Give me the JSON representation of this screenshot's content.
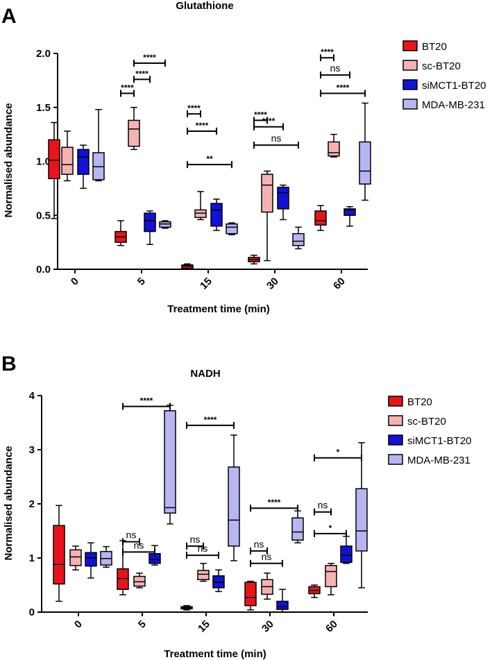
{
  "colors": {
    "BT20": "#e8141b",
    "sc-BT20": "#f5b2b2",
    "siMCT1-BT20": "#1212d6",
    "MDA-MB-231": "#b6b6f2"
  },
  "legend": [
    "BT20",
    "sc-BT20",
    "siMCT1-BT20",
    "MDA-MB-231"
  ],
  "chart_data": [
    {
      "panel": "A",
      "type": "box",
      "title": "Glutathione",
      "xlabel": "Treatment time (min)",
      "ylabel": "Normalised abundance",
      "ylim": [
        0,
        2.0
      ],
      "yticks": [
        "0.0",
        "0.5",
        "1.0",
        "1.5",
        "2.0"
      ],
      "categories": [
        "0",
        "5",
        "15",
        "30",
        "60"
      ],
      "series": [
        {
          "name": "BT20",
          "boxes": [
            {
              "min": 0.47,
              "q1": 0.84,
              "median": 1.01,
              "q3": 1.2,
              "max": 1.36
            },
            {
              "min": 0.22,
              "q1": 0.25,
              "median": 0.3,
              "q3": 0.35,
              "max": 0.45
            },
            {
              "min": 0.0,
              "q1": 0.01,
              "median": 0.03,
              "q3": 0.04,
              "max": 0.05
            },
            {
              "min": 0.05,
              "q1": 0.07,
              "median": 0.09,
              "q3": 0.11,
              "max": 0.13
            },
            {
              "min": 0.36,
              "q1": 0.41,
              "median": 0.45,
              "q3": 0.54,
              "max": 0.59
            }
          ]
        },
        {
          "name": "sc-BT20",
          "boxes": [
            {
              "min": 0.82,
              "q1": 0.88,
              "median": 0.97,
              "q3": 1.13,
              "max": 1.28
            },
            {
              "min": 1.11,
              "q1": 1.14,
              "median": 1.3,
              "q3": 1.38,
              "max": 1.5
            },
            {
              "min": 0.46,
              "q1": 0.48,
              "median": 0.52,
              "q3": 0.55,
              "max": 0.72
            },
            {
              "min": 0.08,
              "q1": 0.53,
              "median": 0.78,
              "q3": 0.88,
              "max": 0.91
            },
            {
              "min": 1.04,
              "q1": 1.05,
              "median": 1.08,
              "q3": 1.18,
              "max": 1.25
            }
          ]
        },
        {
          "name": "siMCT1-BT20",
          "boxes": [
            {
              "min": 0.75,
              "q1": 0.88,
              "median": 1.04,
              "q3": 1.11,
              "max": 1.15
            },
            {
              "min": 0.23,
              "q1": 0.35,
              "median": 0.45,
              "q3": 0.52,
              "max": 0.54
            },
            {
              "min": 0.36,
              "q1": 0.4,
              "median": 0.55,
              "q3": 0.61,
              "max": 0.65
            },
            {
              "min": 0.46,
              "q1": 0.56,
              "median": 0.71,
              "q3": 0.76,
              "max": 0.78
            },
            {
              "min": 0.4,
              "q1": 0.5,
              "median": 0.55,
              "q3": 0.56,
              "max": 0.58
            }
          ]
        },
        {
          "name": "MDA-MB-231",
          "boxes": [
            {
              "min": 0.82,
              "q1": 0.83,
              "median": 0.95,
              "q3": 1.08,
              "max": 1.48
            },
            {
              "min": 0.38,
              "q1": 0.39,
              "median": 0.42,
              "q3": 0.44,
              "max": 0.45
            },
            {
              "min": 0.32,
              "q1": 0.33,
              "median": 0.39,
              "q3": 0.42,
              "max": 0.43
            },
            {
              "min": 0.19,
              "q1": 0.22,
              "median": 0.26,
              "q3": 0.33,
              "max": 0.39
            },
            {
              "min": 0.64,
              "q1": 0.79,
              "median": 0.91,
              "q3": 1.18,
              "max": 1.54
            }
          ]
        }
      ],
      "annotations": [
        {
          "cat": 1,
          "from": 0,
          "to": 1,
          "y": 1.63,
          "label": "****"
        },
        {
          "cat": 1,
          "from": 1,
          "to": 2,
          "y": 1.76,
          "label": "****"
        },
        {
          "cat": 1,
          "from": 1,
          "to": 3,
          "y": 1.91,
          "label": "****"
        },
        {
          "cat": 2,
          "from": 0,
          "to": 1,
          "y": 1.44,
          "label": "****"
        },
        {
          "cat": 2,
          "from": 0,
          "to": 2,
          "y": 1.28,
          "label": "****"
        },
        {
          "cat": 2,
          "from": 0,
          "to": 3,
          "y": 0.97,
          "label": "**"
        },
        {
          "cat": 3,
          "from": 0,
          "to": 1,
          "y": 1.38,
          "label": "****"
        },
        {
          "cat": 3,
          "from": 0,
          "to": 2,
          "y": 1.32,
          "label": "****"
        },
        {
          "cat": 3,
          "from": 0,
          "to": 3,
          "y": 1.15,
          "label": "ns"
        },
        {
          "cat": 4,
          "from": 0,
          "to": 1,
          "y": 1.96,
          "label": "****"
        },
        {
          "cat": 4,
          "from": 0,
          "to": 2,
          "y": 1.8,
          "label": "ns"
        },
        {
          "cat": 4,
          "from": 0,
          "to": 3,
          "y": 1.63,
          "label": "****"
        }
      ]
    },
    {
      "panel": "B",
      "type": "box",
      "title": "NADH",
      "xlabel": "Treatment time (min)",
      "ylabel": "Normalised abundance",
      "ylim": [
        0,
        4
      ],
      "yticks": [
        "0",
        "1",
        "2",
        "3",
        "4"
      ],
      "categories": [
        "0",
        "5",
        "15",
        "30",
        "60"
      ],
      "series": [
        {
          "name": "BT20",
          "boxes": [
            {
              "min": 0.2,
              "q1": 0.52,
              "median": 0.88,
              "q3": 1.6,
              "max": 1.97
            },
            {
              "min": 0.32,
              "q1": 0.42,
              "median": 0.62,
              "q3": 0.8,
              "max": 1.32
            },
            {
              "min": 0.04,
              "q1": 0.06,
              "median": 0.08,
              "q3": 0.1,
              "max": 0.12
            },
            {
              "min": 0.04,
              "q1": 0.12,
              "median": 0.27,
              "q3": 0.55,
              "max": 0.57
            },
            {
              "min": 0.27,
              "q1": 0.34,
              "median": 0.4,
              "q3": 0.47,
              "max": 0.5
            }
          ]
        },
        {
          "name": "sc-BT20",
          "boxes": [
            {
              "min": 0.78,
              "q1": 0.86,
              "median": 1.02,
              "q3": 1.15,
              "max": 1.22
            },
            {
              "min": 0.45,
              "q1": 0.48,
              "median": 0.56,
              "q3": 0.66,
              "max": 0.72
            },
            {
              "min": 0.57,
              "q1": 0.6,
              "median": 0.7,
              "q3": 0.77,
              "max": 0.9
            },
            {
              "min": 0.24,
              "q1": 0.33,
              "median": 0.47,
              "q3": 0.6,
              "max": 0.72
            },
            {
              "min": 0.32,
              "q1": 0.47,
              "median": 0.75,
              "q3": 0.86,
              "max": 0.9
            }
          ]
        },
        {
          "name": "siMCT1-BT20",
          "boxes": [
            {
              "min": 0.63,
              "q1": 0.85,
              "median": 1.0,
              "q3": 1.1,
              "max": 1.28
            },
            {
              "min": 0.87,
              "q1": 0.9,
              "median": 0.97,
              "q3": 1.08,
              "max": 1.23
            },
            {
              "min": 0.38,
              "q1": 0.45,
              "median": 0.55,
              "q3": 0.67,
              "max": 0.78
            },
            {
              "min": 0.0,
              "q1": 0.05,
              "median": 0.1,
              "q3": 0.2,
              "max": 0.42
            },
            {
              "min": 0.9,
              "q1": 0.92,
              "median": 1.05,
              "q3": 1.22,
              "max": 1.4
            }
          ]
        },
        {
          "name": "MDA-MB-231",
          "boxes": [
            {
              "min": 0.83,
              "q1": 0.87,
              "median": 0.99,
              "q3": 1.12,
              "max": 1.21
            },
            {
              "min": 1.63,
              "q1": 1.83,
              "median": 1.93,
              "q3": 3.72,
              "max": 3.82
            },
            {
              "min": 0.95,
              "q1": 1.22,
              "median": 1.7,
              "q3": 2.68,
              "max": 3.27
            },
            {
              "min": 1.28,
              "q1": 1.33,
              "median": 1.48,
              "q3": 1.74,
              "max": 1.87
            },
            {
              "min": 0.45,
              "q1": 1.13,
              "median": 1.5,
              "q3": 2.28,
              "max": 3.13
            }
          ]
        }
      ],
      "annotations": [
        {
          "cat": 1,
          "from": 0,
          "to": 1,
          "y": 1.3,
          "label": "ns"
        },
        {
          "cat": 1,
          "from": 0,
          "to": 2,
          "y": 1.11,
          "label": "ns"
        },
        {
          "cat": 1,
          "from": 0,
          "to": 3,
          "y": 3.8,
          "label": "****"
        },
        {
          "cat": 2,
          "from": 0,
          "to": 1,
          "y": 1.22,
          "label": "ns"
        },
        {
          "cat": 2,
          "from": 0,
          "to": 2,
          "y": 1.05,
          "label": "ns"
        },
        {
          "cat": 2,
          "from": 0,
          "to": 3,
          "y": 3.45,
          "label": "****"
        },
        {
          "cat": 3,
          "from": 0,
          "to": 1,
          "y": 1.13,
          "label": "ns"
        },
        {
          "cat": 3,
          "from": 0,
          "to": 2,
          "y": 0.9,
          "label": "ns"
        },
        {
          "cat": 3,
          "from": 0,
          "to": 3,
          "y": 1.92,
          "label": "****"
        },
        {
          "cat": 4,
          "from": 0,
          "to": 1,
          "y": 1.85,
          "label": "ns"
        },
        {
          "cat": 4,
          "from": 0,
          "to": 2,
          "y": 1.45,
          "label": "*"
        },
        {
          "cat": 4,
          "from": 0,
          "to": 3,
          "y": 2.85,
          "label": "*"
        }
      ]
    }
  ]
}
